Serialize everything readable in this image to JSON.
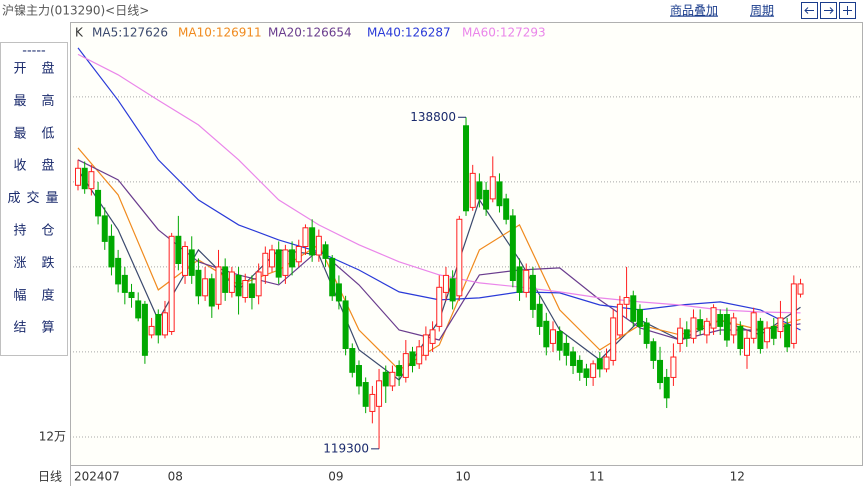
{
  "chart_data": {
    "type": "candlestick",
    "title": "沪镍主力(013290)<日线>",
    "links": [
      "商品叠加",
      "周期"
    ],
    "k_label": "K",
    "period_label": "日线",
    "panel": {
      "separator": "-----",
      "rows": [
        [
          "开",
          "盘"
        ],
        [
          "最",
          "高"
        ],
        [
          "最",
          "低"
        ],
        [
          "收",
          "盘"
        ],
        [
          "成",
          "交",
          "量"
        ],
        [
          "持",
          "仓"
        ],
        [
          "涨",
          "跌"
        ],
        [
          "幅",
          "度"
        ],
        [
          "结",
          "算"
        ]
      ]
    },
    "up_color": "#ff2020",
    "down_color": "#00a800",
    "ylim": [
      118350,
      143050
    ],
    "yticks": [
      140000,
      135000,
      130000,
      125000,
      {
        "value": 120000,
        "label": "12万"
      }
    ],
    "grid": true,
    "categories": [
      "202407",
      null,
      null,
      null,
      null,
      null,
      null,
      null,
      null,
      null,
      null,
      null,
      null,
      null,
      "08",
      null,
      null,
      null,
      null,
      null,
      null,
      null,
      null,
      null,
      null,
      null,
      null,
      null,
      null,
      null,
      null,
      null,
      null,
      null,
      null,
      null,
      null,
      null,
      "09",
      null,
      null,
      null,
      null,
      null,
      null,
      null,
      null,
      null,
      null,
      null,
      null,
      null,
      null,
      null,
      null,
      null,
      null,
      "10",
      null,
      null,
      null,
      null,
      null,
      null,
      null,
      null,
      null,
      null,
      null,
      null,
      null,
      null,
      null,
      null,
      null,
      null,
      null,
      "11",
      null,
      null,
      null,
      null,
      null,
      null,
      null,
      null,
      null,
      null,
      null,
      null,
      null,
      null,
      null,
      null,
      null,
      null,
      null,
      null,
      "12",
      null,
      null,
      null,
      null,
      null,
      null,
      null,
      null,
      null,
      null
    ],
    "open": [
      134800,
      135800,
      134600,
      134500,
      133000,
      131800,
      130500,
      129500,
      128500,
      128000,
      127800,
      126000,
      127200,
      126000,
      126200,
      131800,
      129500,
      131000,
      129800,
      128300,
      129300,
      127800,
      130000,
      128500,
      129500,
      128200,
      129000,
      128300,
      129500,
      130000,
      131000,
      129500,
      131000,
      130300,
      131200,
      132300,
      130700,
      131300,
      130500,
      129000,
      128000,
      125200,
      124200,
      123200,
      121500,
      121800,
      123800,
      123000,
      124200,
      123500,
      125000,
      124300,
      124800,
      125500,
      126500,
      128500,
      129300,
      128300,
      138300,
      133500,
      135000,
      134500,
      134000,
      135000,
      134000,
      133000,
      130000,
      128500,
      129500,
      127800,
      126800,
      125500,
      126200,
      125500,
      125000,
      124500,
      124000,
      123500,
      124600,
      124000,
      124500,
      126000,
      127800,
      128300,
      127500,
      126700,
      125600,
      124500,
      123500,
      123500,
      125500,
      126300,
      125800,
      126900,
      126000,
      126400,
      127200,
      127200,
      126000,
      126500,
      124800,
      125800,
      126800,
      125600,
      126500,
      126200,
      126600,
      125500,
      128400
    ],
    "high": [
      136300,
      136200,
      136000,
      135000,
      133500,
      132500,
      131000,
      130000,
      129000,
      128500,
      128000,
      127000,
      127500,
      128000,
      132000,
      133000,
      131500,
      131800,
      130500,
      130000,
      129600,
      131000,
      130500,
      130000,
      130000,
      129600,
      129500,
      130200,
      131200,
      131300,
      131500,
      131300,
      131500,
      131600,
      132500,
      132800,
      132200,
      131500,
      130700,
      129500,
      128300,
      125500,
      124500,
      123500,
      123000,
      124000,
      124200,
      124200,
      124500,
      125700,
      125300,
      125700,
      126500,
      126800,
      129500,
      130000,
      129800,
      133000,
      138800,
      136000,
      135500,
      135000,
      136500,
      135500,
      134300,
      133400,
      130500,
      130200,
      130000,
      128300,
      127300,
      126800,
      126500,
      126000,
      125300,
      124800,
      124300,
      124500,
      125000,
      125200,
      127500,
      128300,
      130000,
      128600,
      127800,
      127000,
      125800,
      125300,
      124000,
      125500,
      127000,
      126800,
      127500,
      127500,
      127000,
      127800,
      127500,
      127600,
      127300,
      126800,
      126300,
      127600,
      127000,
      126800,
      127000,
      128000,
      127000,
      129500,
      129300
    ],
    "low": [
      134500,
      134300,
      134200,
      132500,
      131000,
      129500,
      128500,
      127800,
      127600,
      126800,
      124300,
      125800,
      125500,
      125800,
      126000,
      129800,
      129000,
      129000,
      127800,
      128000,
      127000,
      127500,
      128000,
      128200,
      127200,
      127900,
      127500,
      127800,
      129000,
      129700,
      129000,
      129000,
      129500,
      130000,
      130700,
      130300,
      130300,
      130000,
      128000,
      127500,
      124800,
      123500,
      122500,
      121400,
      120800,
      119300,
      122000,
      122700,
      123000,
      123200,
      123800,
      124000,
      124500,
      125000,
      126200,
      128000,
      127500,
      128000,
      133000,
      133300,
      133500,
      133000,
      133800,
      133200,
      132500,
      128800,
      128000,
      128200,
      127000,
      126000,
      124800,
      125000,
      124500,
      124200,
      123700,
      123300,
      123000,
      123000,
      123500,
      123800,
      124200,
      125800,
      127000,
      126500,
      126000,
      125200,
      124000,
      122800,
      121700,
      123000,
      125000,
      125300,
      125500,
      126000,
      125500,
      126000,
      126000,
      125300,
      125500,
      124800,
      124000,
      125500,
      124900,
      125200,
      125400,
      125800,
      125000,
      125200,
      128200
    ],
    "close": [
      135800,
      134600,
      135600,
      133000,
      131500,
      130000,
      129000,
      128500,
      128200,
      127000,
      124800,
      126500,
      126000,
      127300,
      131800,
      130200,
      131200,
      129500,
      128300,
      129300,
      127700,
      130000,
      128500,
      129700,
      128300,
      129200,
      128200,
      129700,
      130800,
      131000,
      129400,
      131000,
      130000,
      131200,
      132300,
      130700,
      131800,
      130500,
      128300,
      128000,
      125200,
      123800,
      123000,
      121800,
      122500,
      123300,
      123000,
      123800,
      123600,
      124900,
      124200,
      125300,
      126000,
      126300,
      128800,
      129500,
      128000,
      132800,
      133300,
      135500,
      134000,
      133400,
      135300,
      133600,
      132800,
      129200,
      128500,
      129800,
      127500,
      126500,
      125300,
      126300,
      125100,
      124800,
      124200,
      123800,
      123500,
      124300,
      124000,
      124700,
      127000,
      127800,
      128200,
      126800,
      126500,
      125500,
      124500,
      123200,
      122300,
      124700,
      126400,
      125800,
      127000,
      126300,
      126800,
      127600,
      126500,
      125700,
      127000,
      125200,
      125800,
      127300,
      125200,
      126400,
      125800,
      127000,
      125300,
      129000,
      129000
    ],
    "annotations": [
      138800,
      119300
    ],
    "ma_x": [
      0,
      6,
      12,
      18,
      24,
      30,
      36,
      42,
      48,
      54,
      60,
      66,
      72,
      78,
      84,
      90,
      96,
      102,
      108
    ],
    "ma": [
      {
        "legend": "MA5:127626",
        "color": "#3c4a6e",
        "values": [
          135700,
          132180,
          126880,
          131000,
          128650,
          131000,
          130710,
          125120,
          123350,
          126880,
          133940,
          130410,
          126290,
          124530,
          126880,
          125700,
          126880,
          126000,
          127626
        ]
      },
      {
        "legend": "MA10:126911",
        "color": "#f08a1e",
        "values": [
          137000,
          134240,
          128650,
          130410,
          128940,
          129820,
          131300,
          126290,
          123940,
          125410,
          131000,
          132470,
          127470,
          125120,
          126590,
          126000,
          126880,
          126290,
          126911
        ]
      },
      {
        "legend": "MA20:126654",
        "color": "#6a3d8e",
        "values": [
          136300,
          135120,
          132180,
          130300,
          129530,
          128940,
          131000,
          128940,
          126290,
          125700,
          129530,
          129820,
          129940,
          128060,
          126410,
          125700,
          126290,
          126290,
          126654
        ]
      },
      {
        "legend": "MA40:126287",
        "color": "#2a3ad8",
        "values": [
          142880,
          139800,
          136300,
          133940,
          132470,
          131590,
          130880,
          129820,
          128530,
          128060,
          128180,
          128530,
          128470,
          127760,
          127470,
          127760,
          127940,
          127470,
          126287
        ]
      },
      {
        "legend": "MA60:127293",
        "color": "#ea86ea",
        "values": [
          142500,
          141300,
          139800,
          138350,
          136300,
          133940,
          132470,
          131300,
          130300,
          129530,
          129060,
          128820,
          128530,
          128180,
          127940,
          127760,
          127470,
          127350,
          127293
        ]
      }
    ]
  }
}
